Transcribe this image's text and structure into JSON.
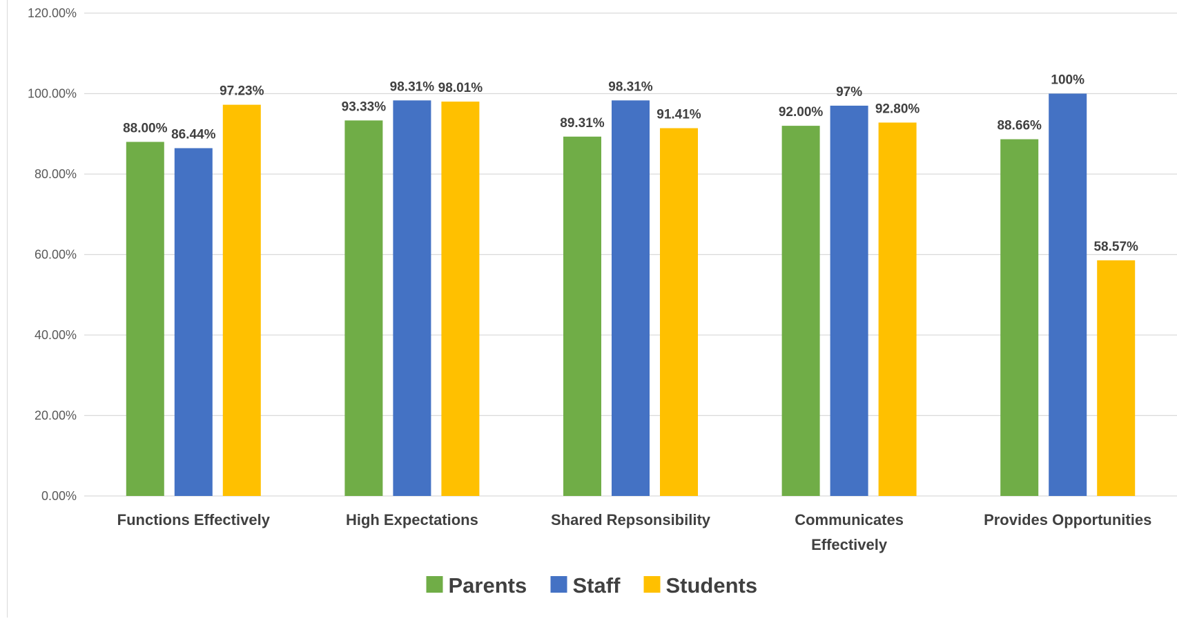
{
  "chart_data": {
    "type": "bar",
    "title": "",
    "xlabel": "",
    "ylabel": "",
    "ylim": [
      0,
      1.2
    ],
    "yticks": [
      0,
      0.2,
      0.4,
      0.6,
      0.8,
      1.0,
      1.2
    ],
    "ytick_labels": [
      "0.00%",
      "20.00%",
      "40.00%",
      "60.00%",
      "80.00%",
      "100.00%",
      "120.00%"
    ],
    "grid": true,
    "legend_position": "bottom",
    "categories": [
      [
        "Functions Effectively"
      ],
      [
        "High Expectations"
      ],
      [
        "Shared Repsonsibility"
      ],
      [
        "Communicates",
        "Effectively"
      ],
      [
        "Provides Opportunities"
      ]
    ],
    "series": [
      {
        "name": "Parents",
        "color": "#70ad47",
        "values": [
          0.88,
          0.9333,
          0.8931,
          0.92,
          0.8866
        ],
        "labels": [
          "88.00%",
          "93.33%",
          "89.31%",
          "92.00%",
          "88.66%"
        ]
      },
      {
        "name": "Staff",
        "color": "#4472c4",
        "values": [
          0.8644,
          0.9831,
          0.9831,
          0.97,
          1.0
        ],
        "labels": [
          "86.44%",
          "98.31%",
          "98.31%",
          "97%",
          "100%"
        ]
      },
      {
        "name": "Students",
        "color": "#ffc000",
        "values": [
          0.9723,
          0.9801,
          0.9141,
          0.928,
          0.5857
        ],
        "labels": [
          "97.23%",
          "98.01%",
          "91.41%",
          "92.80%",
          "58.57%"
        ]
      }
    ]
  }
}
